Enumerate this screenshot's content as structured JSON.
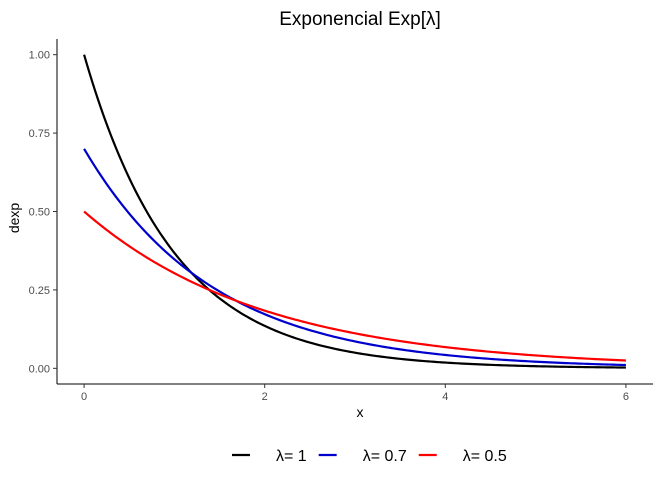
{
  "chart_data": {
    "type": "line",
    "title": "Exponencial Exp[λ]",
    "xlabel": "x",
    "ylabel": "dexp",
    "xlim": [
      -0.3,
      6.3
    ],
    "ylim": [
      -0.05,
      1.05
    ],
    "xticks": [
      0,
      2,
      4,
      6
    ],
    "yticks": [
      0.0,
      0.25,
      0.5,
      0.75,
      1.0
    ],
    "xtick_labels": [
      "0",
      "2",
      "4",
      "6"
    ],
    "ytick_labels": [
      "0.00",
      "0.25",
      "0.50",
      "0.75",
      "1.00"
    ],
    "grid": false,
    "legend_position": "bottom",
    "series": [
      {
        "name": "λ= 1",
        "rate": 1,
        "color": "#000000",
        "x": [
          0,
          0.5,
          1,
          1.5,
          2,
          2.5,
          3,
          3.5,
          4,
          4.5,
          5,
          5.5,
          6
        ],
        "values": [
          1.0,
          0.607,
          0.368,
          0.223,
          0.135,
          0.082,
          0.05,
          0.03,
          0.018,
          0.011,
          0.007,
          0.004,
          0.002
        ]
      },
      {
        "name": "λ= 0.7",
        "rate": 0.7,
        "color": "#0000cd",
        "x": [
          0,
          0.5,
          1,
          1.5,
          2,
          2.5,
          3,
          3.5,
          4,
          4.5,
          5,
          5.5,
          6
        ],
        "values": [
          0.7,
          0.493,
          0.348,
          0.245,
          0.173,
          0.122,
          0.086,
          0.06,
          0.043,
          0.03,
          0.021,
          0.015,
          0.01
        ]
      },
      {
        "name": "λ= 0.5",
        "rate": 0.5,
        "color": "#ff0000",
        "x": [
          0,
          0.5,
          1,
          1.5,
          2,
          2.5,
          3,
          3.5,
          4,
          4.5,
          5,
          5.5,
          6
        ],
        "values": [
          0.5,
          0.389,
          0.303,
          0.236,
          0.184,
          0.143,
          0.112,
          0.087,
          0.068,
          0.053,
          0.041,
          0.032,
          0.025
        ]
      }
    ]
  }
}
